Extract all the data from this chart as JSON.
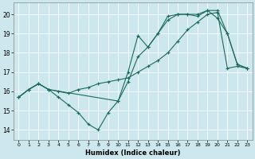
{
  "xlabel": "Humidex (Indice chaleur)",
  "bg_color": "#cce8ee",
  "line_color": "#1a6b5a",
  "grid_color": "#ffffff",
  "xlim": [
    -0.5,
    23.5
  ],
  "ylim": [
    13.5,
    20.6
  ],
  "xticks": [
    0,
    1,
    2,
    3,
    4,
    5,
    6,
    7,
    8,
    9,
    10,
    11,
    12,
    13,
    14,
    15,
    16,
    17,
    18,
    19,
    20,
    21,
    22,
    23
  ],
  "yticks": [
    14,
    15,
    16,
    17,
    18,
    19,
    20
  ],
  "line1_x": [
    0,
    1,
    2,
    3,
    4,
    5,
    6,
    7,
    8,
    9,
    10,
    11,
    12,
    13,
    14,
    15,
    16,
    17,
    18,
    19,
    20,
    21,
    22,
    23
  ],
  "line1_y": [
    15.7,
    16.1,
    16.4,
    16.1,
    15.7,
    15.3,
    14.9,
    14.3,
    14.0,
    14.9,
    15.5,
    17.0,
    18.9,
    18.3,
    19.0,
    19.9,
    20.0,
    20.0,
    20.0,
    20.2,
    19.8,
    19.0,
    17.4,
    17.2
  ],
  "line2_x": [
    0,
    1,
    2,
    3,
    4,
    5,
    6,
    7,
    8,
    9,
    10,
    11,
    12,
    13,
    14,
    15,
    16,
    17,
    18,
    19,
    20,
    21,
    22,
    23
  ],
  "line2_y": [
    15.7,
    16.1,
    16.4,
    16.1,
    16.0,
    15.9,
    16.1,
    16.2,
    16.4,
    16.5,
    16.6,
    16.7,
    17.0,
    17.3,
    17.6,
    18.0,
    18.6,
    19.2,
    19.6,
    20.0,
    20.1,
    17.2,
    17.3,
    17.2
  ],
  "line3_x": [
    0,
    1,
    2,
    3,
    10,
    11,
    12,
    13,
    14,
    15,
    16,
    17,
    18,
    19,
    20,
    21,
    22,
    23
  ],
  "line3_y": [
    15.7,
    16.1,
    16.4,
    16.1,
    15.5,
    16.5,
    17.8,
    18.3,
    19.0,
    19.7,
    20.0,
    20.0,
    19.9,
    20.2,
    20.2,
    19.0,
    17.4,
    17.2
  ]
}
